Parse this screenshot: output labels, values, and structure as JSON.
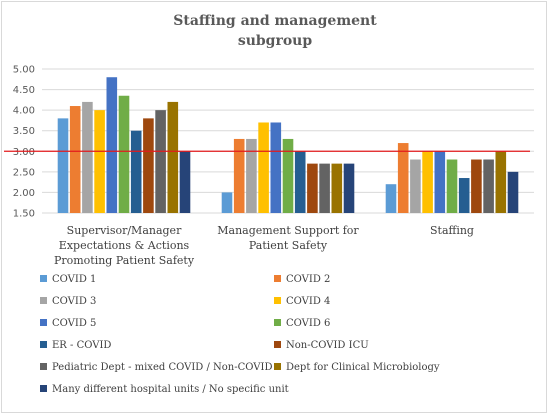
{
  "chart_data": {
    "type": "bar",
    "title_lines": [
      "Staffing and management",
      "subgroup"
    ],
    "categories": [
      [
        "Supervisor/Manager",
        "Expectations & Actions",
        "Promoting Patient Safety"
      ],
      [
        "Management Support for",
        "Patient Safety"
      ],
      [
        "Staffing"
      ]
    ],
    "yticks": [
      "1.50",
      "2.00",
      "2.50",
      "3.00",
      "3.50",
      "4.00",
      "4.50",
      "5.00"
    ],
    "ylim": [
      1.5,
      5.0
    ],
    "reference_line": 3.0,
    "reference_color": "#e31a1c",
    "grid": true,
    "legend_position": "bottom",
    "series": [
      {
        "name": "COVID 1",
        "color": "#5b9bd5",
        "values": [
          3.8,
          2.0,
          2.2
        ]
      },
      {
        "name": "COVID 2",
        "color": "#ed7d31",
        "values": [
          4.1,
          3.3,
          3.2
        ]
      },
      {
        "name": "COVID 3",
        "color": "#a5a5a5",
        "values": [
          4.2,
          3.3,
          2.8
        ]
      },
      {
        "name": "COVID 4",
        "color": "#ffc000",
        "values": [
          4.0,
          3.7,
          3.0
        ]
      },
      {
        "name": "COVID 5",
        "color": "#4472c4",
        "values": [
          4.8,
          3.7,
          3.0
        ]
      },
      {
        "name": "COVID  6",
        "color": "#70ad47",
        "values": [
          4.35,
          3.3,
          2.8
        ]
      },
      {
        "name": "ER - COVID",
        "color": "#255e91",
        "values": [
          3.5,
          3.0,
          2.35
        ]
      },
      {
        "name": "Non-COVID ICU",
        "color": "#9e480e",
        "values": [
          3.8,
          2.7,
          2.8
        ]
      },
      {
        "name": "Pediatric Dept - mixed COVID / Non-COVID",
        "color": "#636363",
        "values": [
          4.0,
          2.7,
          2.8
        ]
      },
      {
        "name": "Dept for Clinical Microbiology",
        "color": "#997300",
        "values": [
          4.2,
          2.7,
          3.0
        ]
      },
      {
        "name": "Many different hospital units / No specific unit",
        "color": "#264478",
        "values": [
          3.0,
          2.7,
          2.5
        ]
      }
    ]
  }
}
